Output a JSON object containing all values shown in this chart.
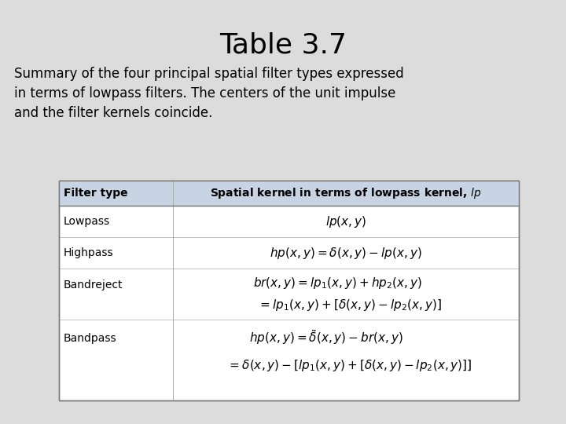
{
  "title": "Table 3.7",
  "subtitle": "Summary of the four principal spatial filter types expressed\nin terms of lowpass filters. The centers of the unit impulse\nand the filter kernels coincide.",
  "col_header_left": "Filter type",
  "col_header_right": "Spatial kernel in terms of lowpass kernel, $\\it{lp}$",
  "header_bg": "#c8d3e3",
  "table_bg": "#ffffff",
  "border_color": "#888888",
  "bg_color": "#dcdcdc",
  "title_fontsize": 26,
  "subtitle_fontsize": 12,
  "table_fontsize": 10,
  "header_fontsize": 10
}
